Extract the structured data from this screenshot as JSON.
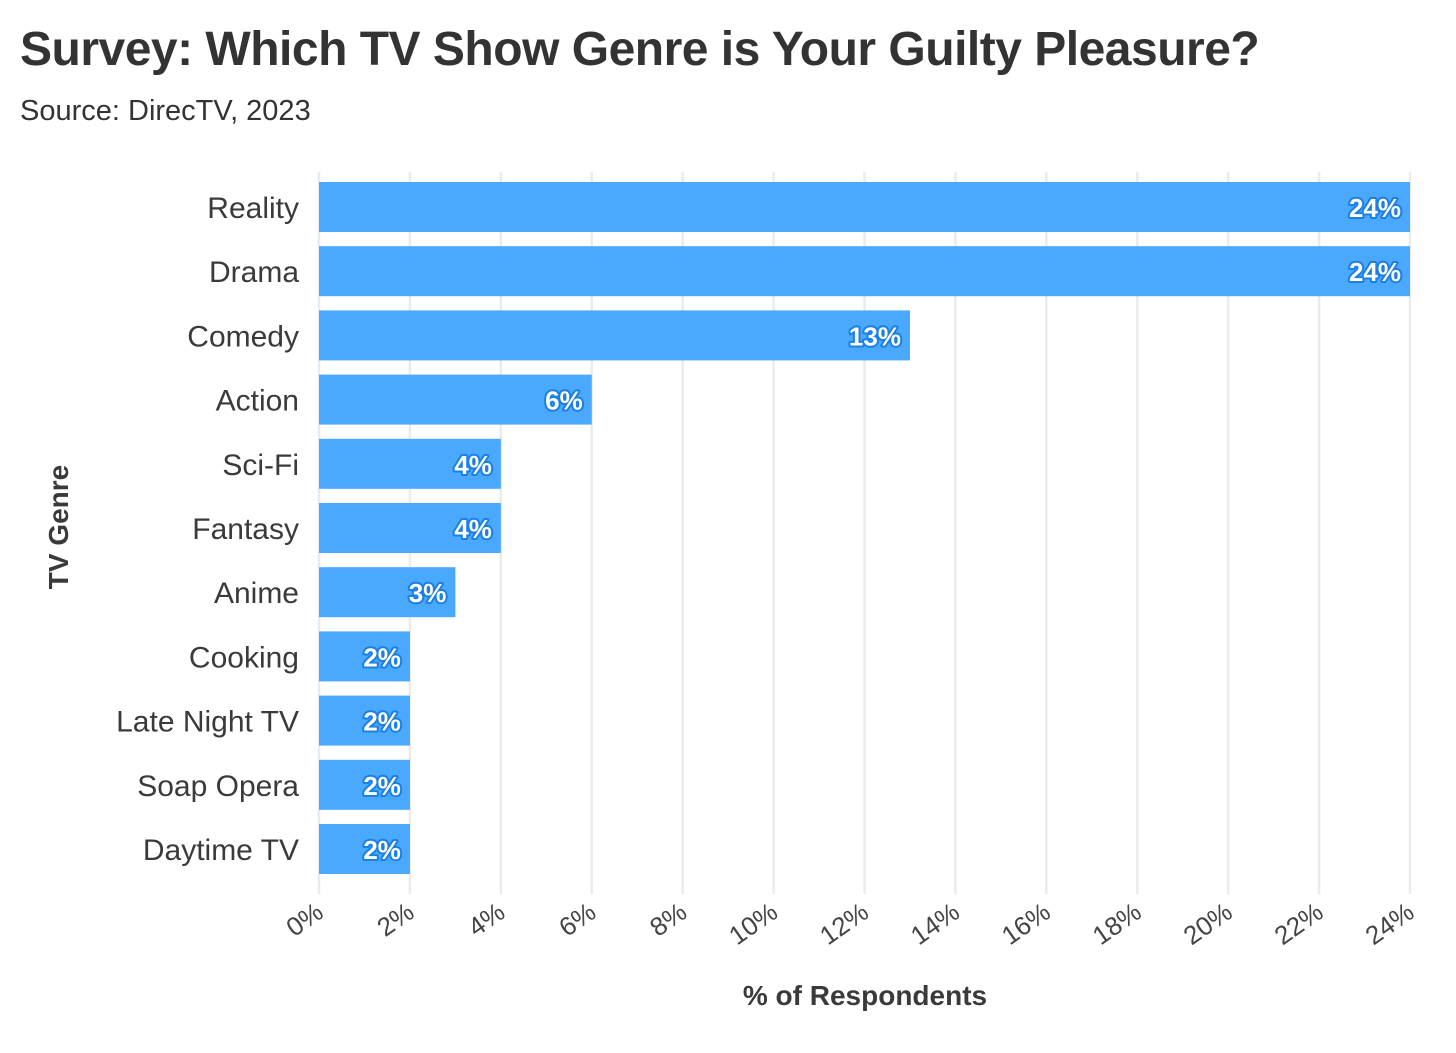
{
  "chart_data": {
    "type": "bar",
    "orientation": "horizontal",
    "title": "Survey: Which TV Show Genre is Your Guilty Pleasure?",
    "subtitle": "Source: DirecTV, 2023",
    "xlabel": "% of Respondents",
    "ylabel": "TV Genre",
    "categories": [
      "Reality",
      "Drama",
      "Comedy",
      "Action",
      "Sci-Fi",
      "Fantasy",
      "Anime",
      "Cooking",
      "Late Night TV",
      "Soap Opera",
      "Daytime TV"
    ],
    "values": [
      24,
      24,
      13,
      6,
      4,
      4,
      3,
      2,
      2,
      2,
      2
    ],
    "data_labels": [
      "24%",
      "24%",
      "13%",
      "6%",
      "4%",
      "4%",
      "3%",
      "2%",
      "2%",
      "2%",
      "2%"
    ],
    "xlim": [
      0,
      24
    ],
    "x_ticks": [
      0,
      2,
      4,
      6,
      8,
      10,
      12,
      14,
      16,
      18,
      20,
      22,
      24
    ],
    "x_tick_labels": [
      "0%",
      "2%",
      "4%",
      "6%",
      "8%",
      "10%",
      "12%",
      "14%",
      "16%",
      "18%",
      "20%",
      "22%",
      "24%"
    ],
    "grid": true,
    "legend": "none",
    "colors": {
      "bar": "#4aa8fd",
      "grid": "#ebebeb",
      "text": "#333333"
    }
  }
}
